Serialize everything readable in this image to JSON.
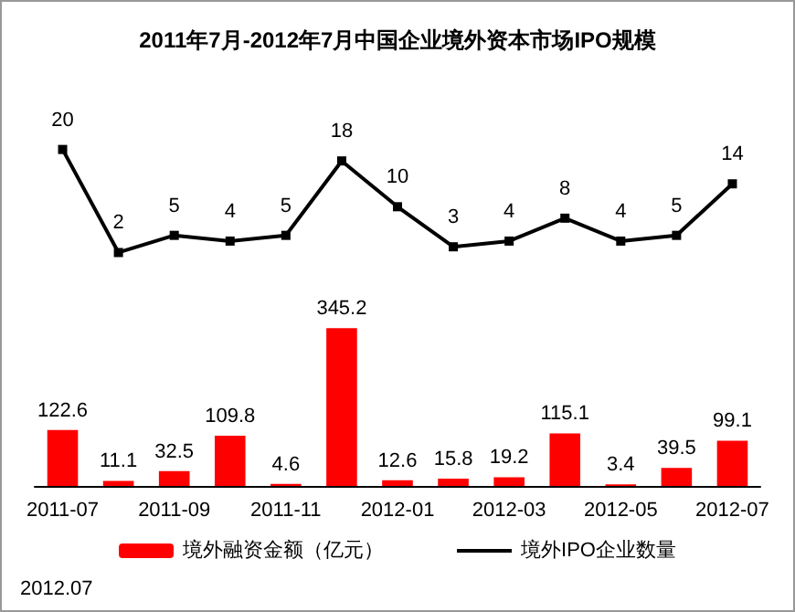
{
  "chart_data": [
    {
      "type": "line",
      "title": "2011年7月-2012年7月中国企业境外资本市场IPO规模",
      "categories": [
        "2011-07",
        null,
        "2011-09",
        null,
        "2011-11",
        null,
        "2012-01",
        null,
        "2012-03",
        null,
        "2012-05",
        null,
        "2012-07"
      ],
      "series": [
        {
          "name": "境外IPO企业数量",
          "color": "#000000",
          "values": [
            20,
            2,
            5,
            4,
            5,
            18,
            10,
            3,
            4,
            8,
            4,
            5,
            14
          ]
        }
      ],
      "data_labels": true,
      "marker": "square",
      "line_style": "solid",
      "tick_labels": false
    },
    {
      "type": "bar",
      "categories": [
        "2011-07",
        null,
        "2011-09",
        null,
        "2011-11",
        null,
        "2012-01",
        null,
        "2012-03",
        null,
        "2012-05",
        null,
        "2012-07"
      ],
      "series": [
        {
          "name": "境外融资金额（亿元）",
          "color": "#ff0000",
          "values": [
            122.6,
            11.1,
            32.5,
            109.8,
            4.6,
            345.2,
            12.6,
            15.8,
            19.2,
            115.1,
            3.4,
            39.5,
            99.1
          ]
        }
      ],
      "data_labels": true,
      "legend": "bottom",
      "tick_labels": "x",
      "annotations": [
        "2012.07"
      ]
    }
  ]
}
